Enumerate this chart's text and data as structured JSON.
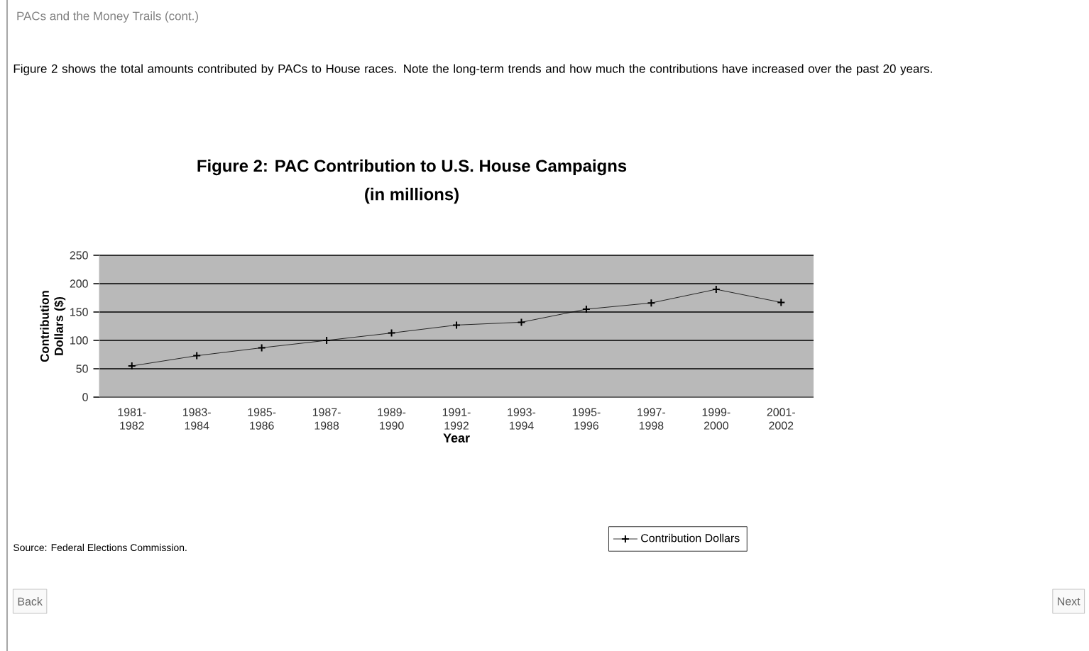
{
  "chart_data": {
    "type": "line",
    "title": "Figure 2: PAC Contribution to U.S. House Campaigns",
    "subtitle": "(in millions)",
    "xlabel": "Year",
    "ylabel": "Contribution Dollars ($)",
    "categories": [
      "1981-1982",
      "1983-1984",
      "1985-1986",
      "1987-1988",
      "1989-1990",
      "1991-1992",
      "1993-1994",
      "1995-1996",
      "1997-1998",
      "1999-2000",
      "2001-2002"
    ],
    "series": [
      {
        "name": "Contribution Dollars",
        "color": "#000000",
        "values": [
          55,
          73,
          87,
          100,
          113,
          127,
          132,
          155,
          166,
          190,
          167
        ]
      }
    ],
    "ylim": [
      0,
      250
    ],
    "yticks": [
      0,
      50,
      100,
      150,
      200,
      250
    ],
    "grid": "y",
    "legend": "bottom",
    "marker": "cross",
    "line_style": "solid",
    "annotations": [
      "PACs and the Money Trails (cont.)",
      "Figure 2 shows the total amounts contributed by PACs to House races. Note the long-term trends and how much the contributions have increased over the past 20 years.",
      "Source: Federal Elections Commission.",
      "Back",
      "Next"
    ]
  }
}
